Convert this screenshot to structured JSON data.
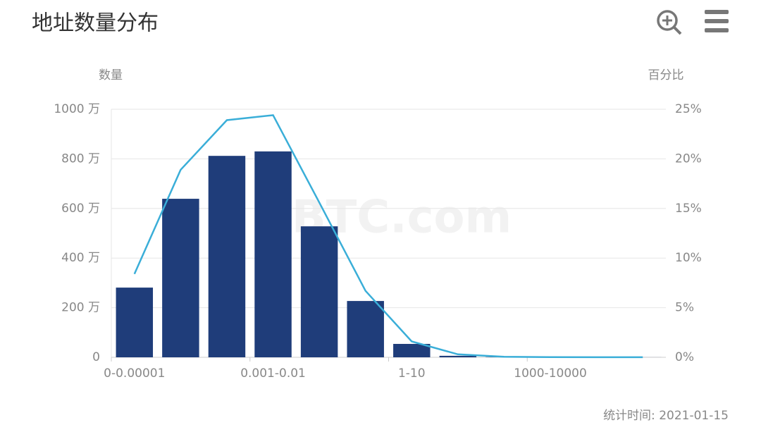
{
  "title": "地址数量分布",
  "chart_data": {
    "type": "bar-line",
    "y_label": "数量",
    "y2_label": "百分比",
    "watermark": "BTC.com",
    "footnote": "统计时间: 2021-01-15",
    "categories": [
      "0-0.00001",
      null,
      null,
      "0.001-0.01",
      null,
      null,
      "1-10",
      null,
      null,
      "1000-10000",
      null,
      null
    ],
    "series": [
      {
        "type": "bar",
        "color": "#1f3d7a",
        "values": [
          281,
          639,
          812,
          830,
          528,
          227,
          54,
          6,
          1,
          0.5,
          0.3,
          0.2
        ]
      },
      {
        "type": "line",
        "axis": "y2",
        "color": "#3aaed8",
        "values": [
          8.4,
          18.9,
          23.9,
          24.4,
          15.6,
          6.7,
          1.6,
          0.3,
          0.05,
          0.02,
          0.01,
          0.01
        ]
      }
    ],
    "ylim": [
      0,
      1000
    ],
    "yticks": [
      0,
      {
        "value": 200,
        "label": "200 万"
      },
      {
        "value": 400,
        "label": "400 万"
      },
      {
        "value": 600,
        "label": "600 万"
      },
      {
        "value": 800,
        "label": "800 万"
      },
      {
        "value": 1000,
        "label": "1000 万"
      }
    ],
    "y2lim": [
      0,
      25
    ],
    "y2ticks": [
      {
        "value": 0,
        "label": "0%"
      },
      {
        "value": 5,
        "label": "5%"
      },
      {
        "value": 10,
        "label": "10%"
      },
      {
        "value": 15,
        "label": "15%"
      },
      {
        "value": 20,
        "label": "20%"
      },
      {
        "value": 25,
        "label": "25%"
      }
    ],
    "grid": true
  }
}
